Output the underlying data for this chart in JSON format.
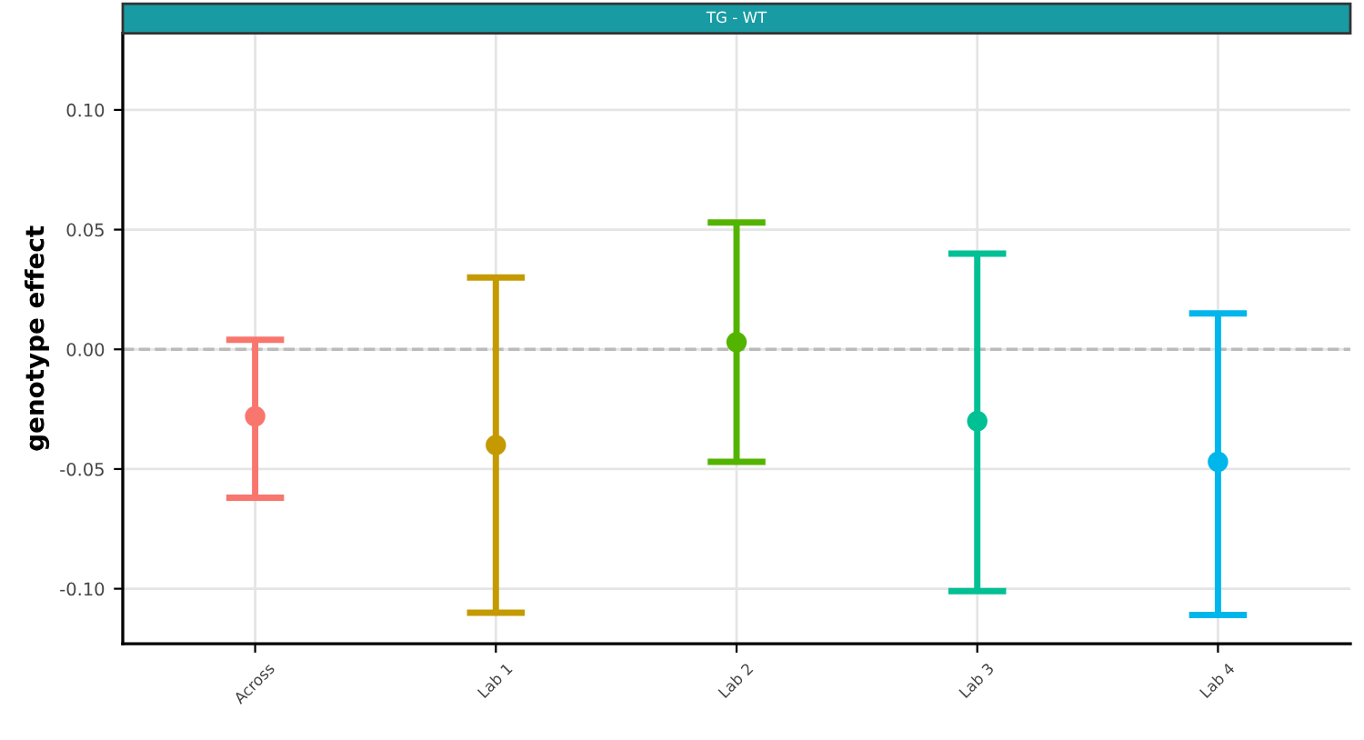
{
  "chart_data": {
    "type": "scatter",
    "title": "TG - WT",
    "ylabel": "genotype effect",
    "categories": [
      "Across",
      "Lab 1",
      "Lab 2",
      "Lab 3",
      "Lab 4"
    ],
    "values": [
      -0.028,
      -0.04,
      0.003,
      -0.03,
      -0.047
    ],
    "errors": [
      [
        -0.062,
        0.004
      ],
      [
        -0.11,
        0.03
      ],
      [
        -0.047,
        0.053
      ],
      [
        -0.101,
        0.04
      ],
      [
        -0.111,
        0.015
      ]
    ],
    "colors": [
      "#f8766d",
      "#c49a00",
      "#53b400",
      "#00c094",
      "#00b6eb"
    ],
    "ylim": [
      -0.123,
      0.132
    ],
    "yticks": [
      {
        "value": -0.1,
        "label": "-0.10"
      },
      -0.05,
      {
        "value": 0,
        "label": "0.00"
      },
      0.05,
      {
        "value": 0.1,
        "label": "0.10"
      }
    ],
    "ref_lines": [
      {
        "axis": "y",
        "value": 0,
        "color": "#bbbbbb",
        "line_style": "dashed"
      }
    ],
    "grid": true,
    "marker": "circle",
    "legend": false
  }
}
